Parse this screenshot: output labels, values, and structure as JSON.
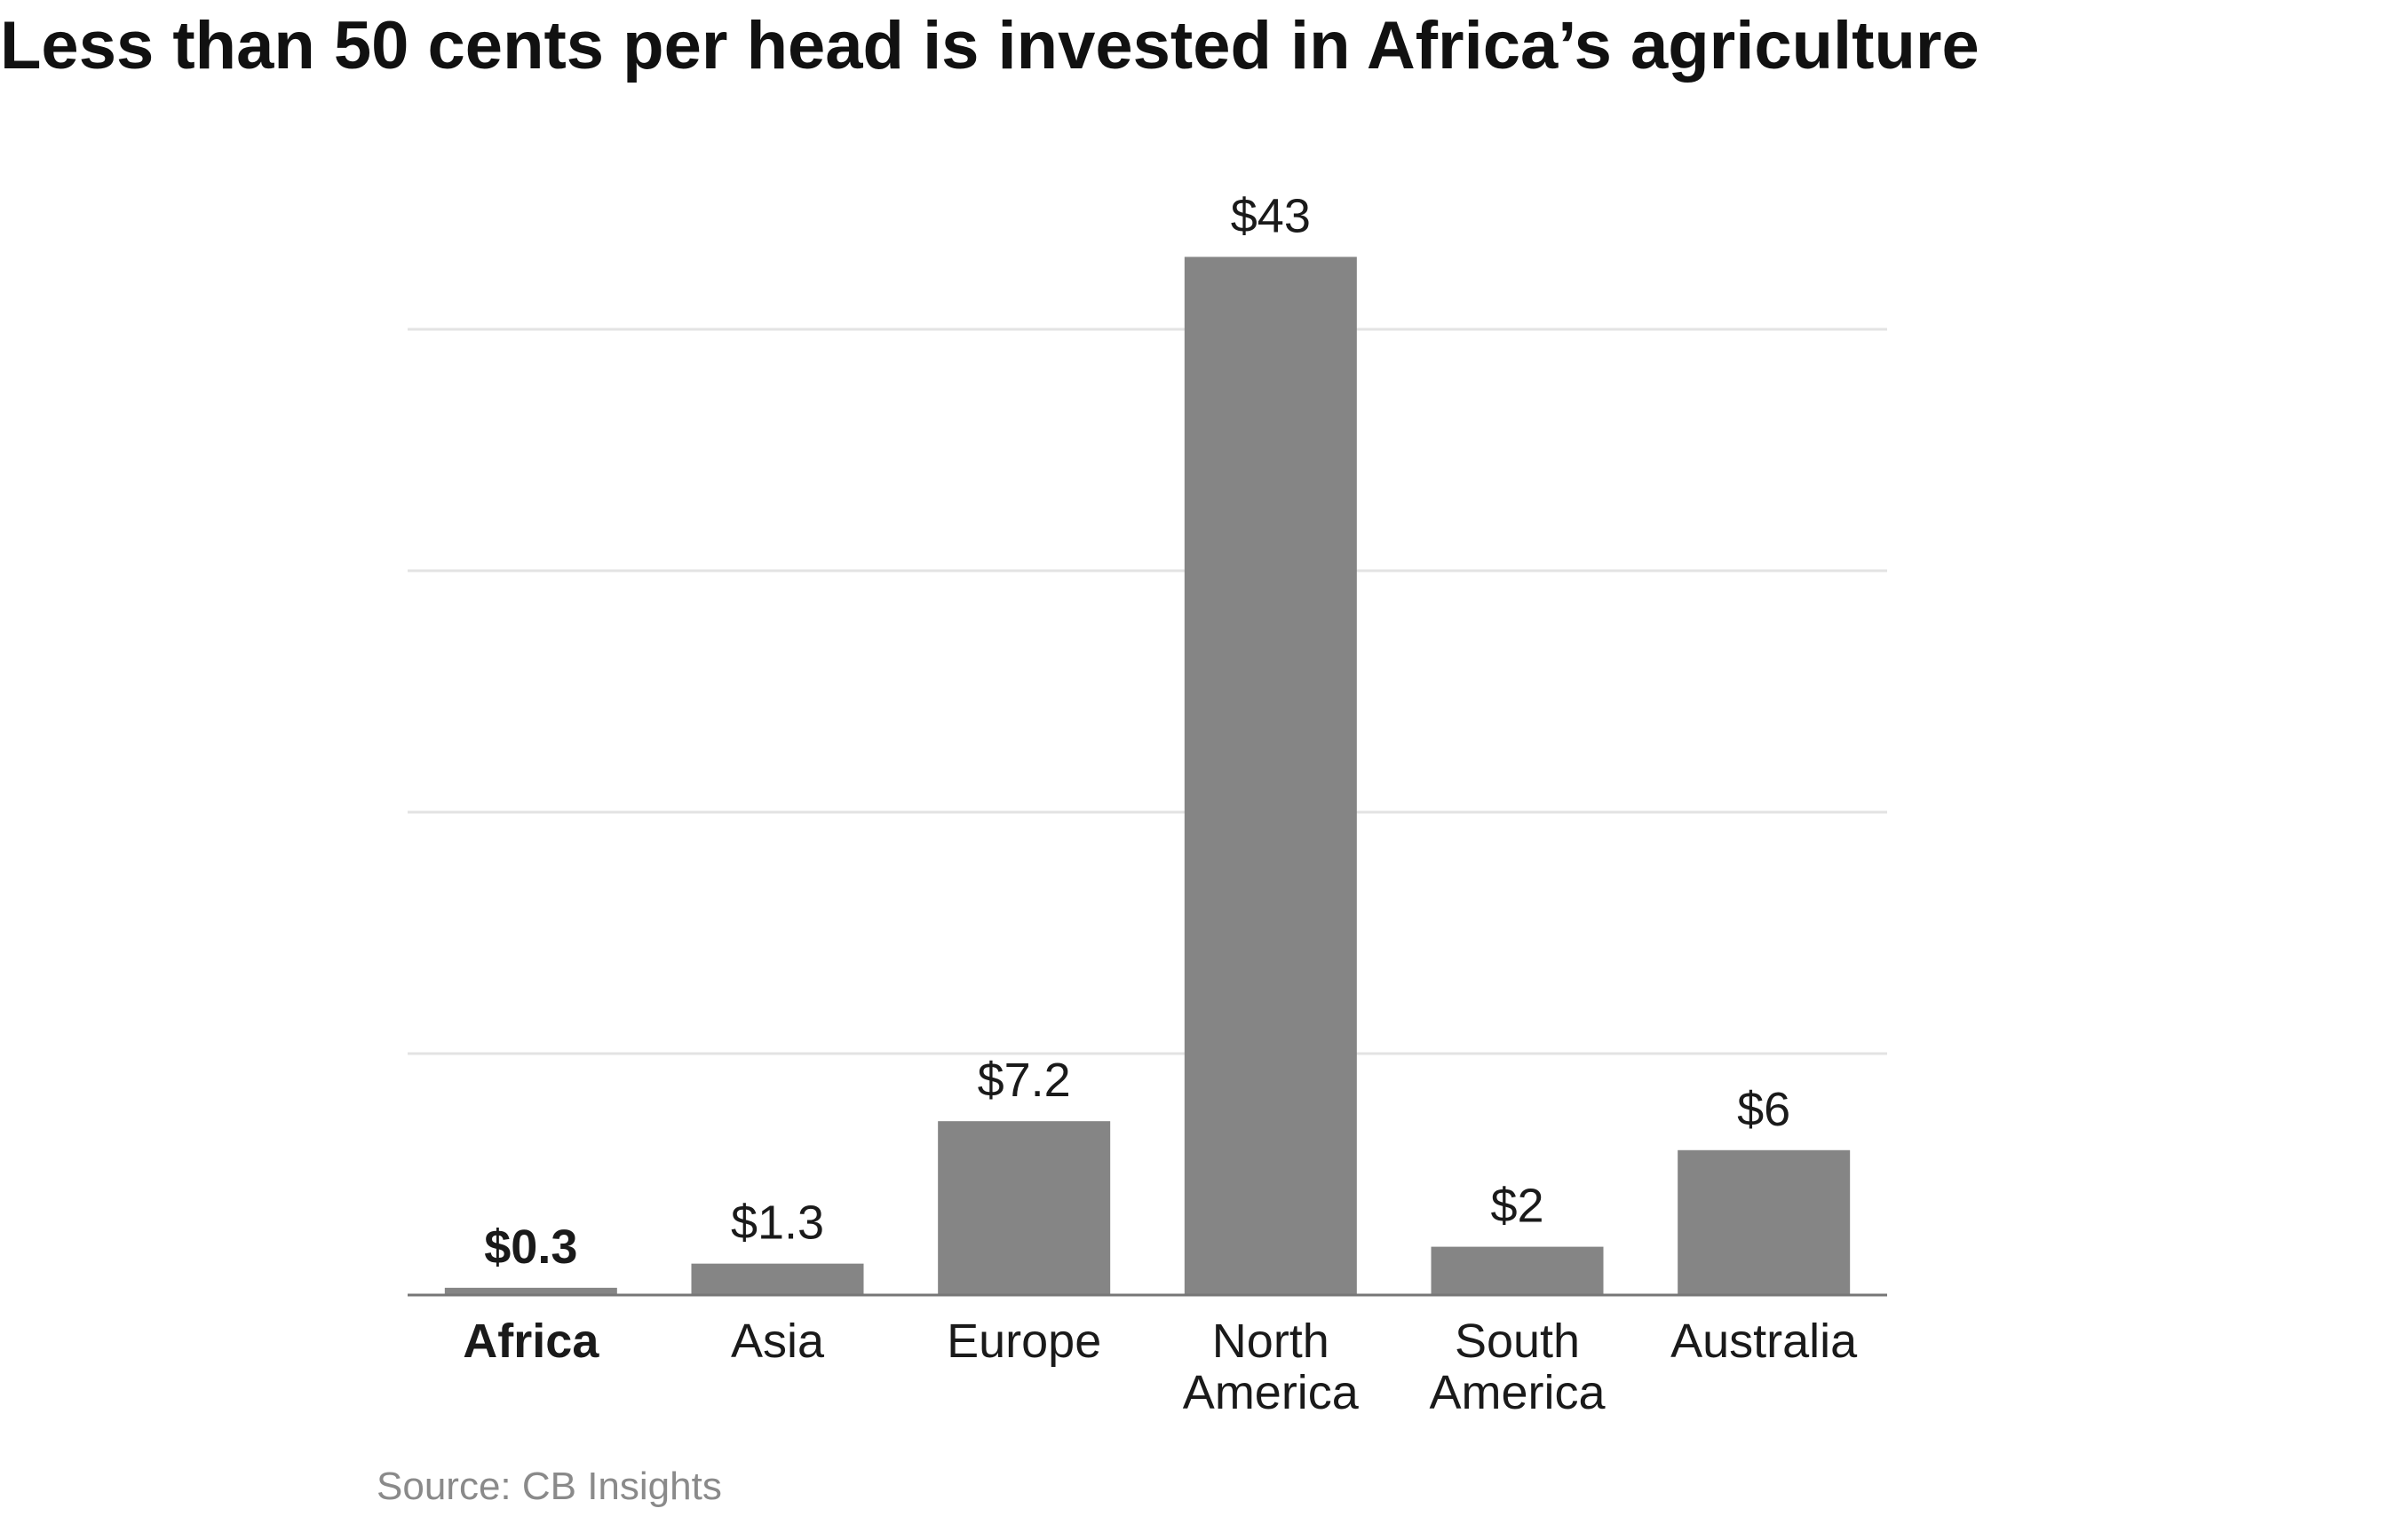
{
  "title": "Less than 50 cents per head is invested in Africa’s agriculture",
  "source": "Source: CB Insights",
  "colors": {
    "bar": "#858585",
    "grid": "#e3e3e3",
    "axis": "#777777",
    "text": "#1a1a1a",
    "source": "#8a8a8a"
  },
  "chart_data": {
    "type": "bar",
    "categories": [
      [
        "Africa"
      ],
      [
        "Asia"
      ],
      [
        "Europe"
      ],
      [
        "North",
        "America"
      ],
      [
        "South",
        "America"
      ],
      [
        "Australia"
      ]
    ],
    "values": [
      0.3,
      1.3,
      7.2,
      43,
      2,
      6
    ],
    "value_labels": [
      "$0.3",
      "$1.3",
      "$7.2",
      "$43",
      "$2",
      "$6"
    ],
    "highlight_index": 0,
    "ylim": [
      0,
      40
    ],
    "gridlines": [
      10,
      20,
      30,
      40
    ],
    "xlabel": "",
    "ylabel": ""
  }
}
